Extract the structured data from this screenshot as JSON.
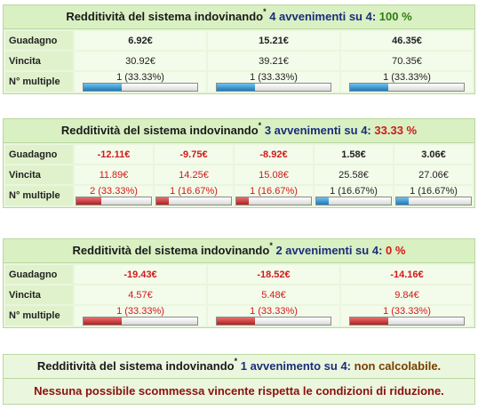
{
  "labels": {
    "guadagno": "Guadagno",
    "vincita": "Vincita",
    "multiple": "N° multiple"
  },
  "panels": [
    {
      "title_prefix": "Redditività del sistema indovinando",
      "asterisk": "*",
      "title_mid": "4 avvenimenti su 4:",
      "title_value": "100 %",
      "columns": [
        {
          "guadagno": "6.92€",
          "vincita": "30.92€",
          "multiple": "1 (33.33%)",
          "fill": 0.3333,
          "color": "blue",
          "neg": false
        },
        {
          "guadagno": "15.21€",
          "vincita": "39.21€",
          "multiple": "1 (33.33%)",
          "fill": 0.3333,
          "color": "blue",
          "neg": false
        },
        {
          "guadagno": "46.35€",
          "vincita": "70.35€",
          "multiple": "1 (33.33%)",
          "fill": 0.3333,
          "color": "blue",
          "neg": false
        }
      ]
    },
    {
      "title_prefix": "Redditività del sistema indovinando",
      "asterisk": "*",
      "title_mid": "3 avvenimenti su 4:",
      "title_value": "33.33 %",
      "columns": [
        {
          "guadagno": "-12.11€",
          "vincita": "11.89€",
          "multiple": "2 (33.33%)",
          "fill": 0.3333,
          "color": "red",
          "neg": true
        },
        {
          "guadagno": "-9.75€",
          "vincita": "14.25€",
          "multiple": "1 (16.67%)",
          "fill": 0.1667,
          "color": "red",
          "neg": true
        },
        {
          "guadagno": "-8.92€",
          "vincita": "15.08€",
          "multiple": "1 (16.67%)",
          "fill": 0.1667,
          "color": "red",
          "neg": true
        },
        {
          "guadagno": "1.58€",
          "vincita": "25.58€",
          "multiple": "1 (16.67%)",
          "fill": 0.1667,
          "color": "blue",
          "neg": false
        },
        {
          "guadagno": "3.06€",
          "vincita": "27.06€",
          "multiple": "1 (16.67%)",
          "fill": 0.1667,
          "color": "blue",
          "neg": false
        }
      ]
    },
    {
      "title_prefix": "Redditività del sistema indovinando",
      "asterisk": "*",
      "title_mid": "2 avvenimenti su 4:",
      "title_value": "0 %",
      "columns": [
        {
          "guadagno": "-19.43€",
          "vincita": "4.57€",
          "multiple": "1 (33.33%)",
          "fill": 0.3333,
          "color": "red",
          "neg": true
        },
        {
          "guadagno": "-18.52€",
          "vincita": "5.48€",
          "multiple": "1 (33.33%)",
          "fill": 0.3333,
          "color": "red",
          "neg": true
        },
        {
          "guadagno": "-14.16€",
          "vincita": "9.84€",
          "multiple": "1 (33.33%)",
          "fill": 0.3333,
          "color": "red",
          "neg": true
        }
      ]
    }
  ],
  "last_panel": {
    "title_prefix": "Redditività del sistema indovinando",
    "asterisk": "*",
    "title_mid": "1 avvenimento su 4:",
    "title_value": "non calcolabile.",
    "message": "Nessuna possibile scommessa vincente rispetta le condizioni di riduzione."
  },
  "colors": {
    "positive": "#2e7d10",
    "negative": "#d11919",
    "neutral": "#7a3d00",
    "highlight": "#1a2d7a",
    "bar_blue": "#1e78b8",
    "bar_red": "#b22020"
  }
}
